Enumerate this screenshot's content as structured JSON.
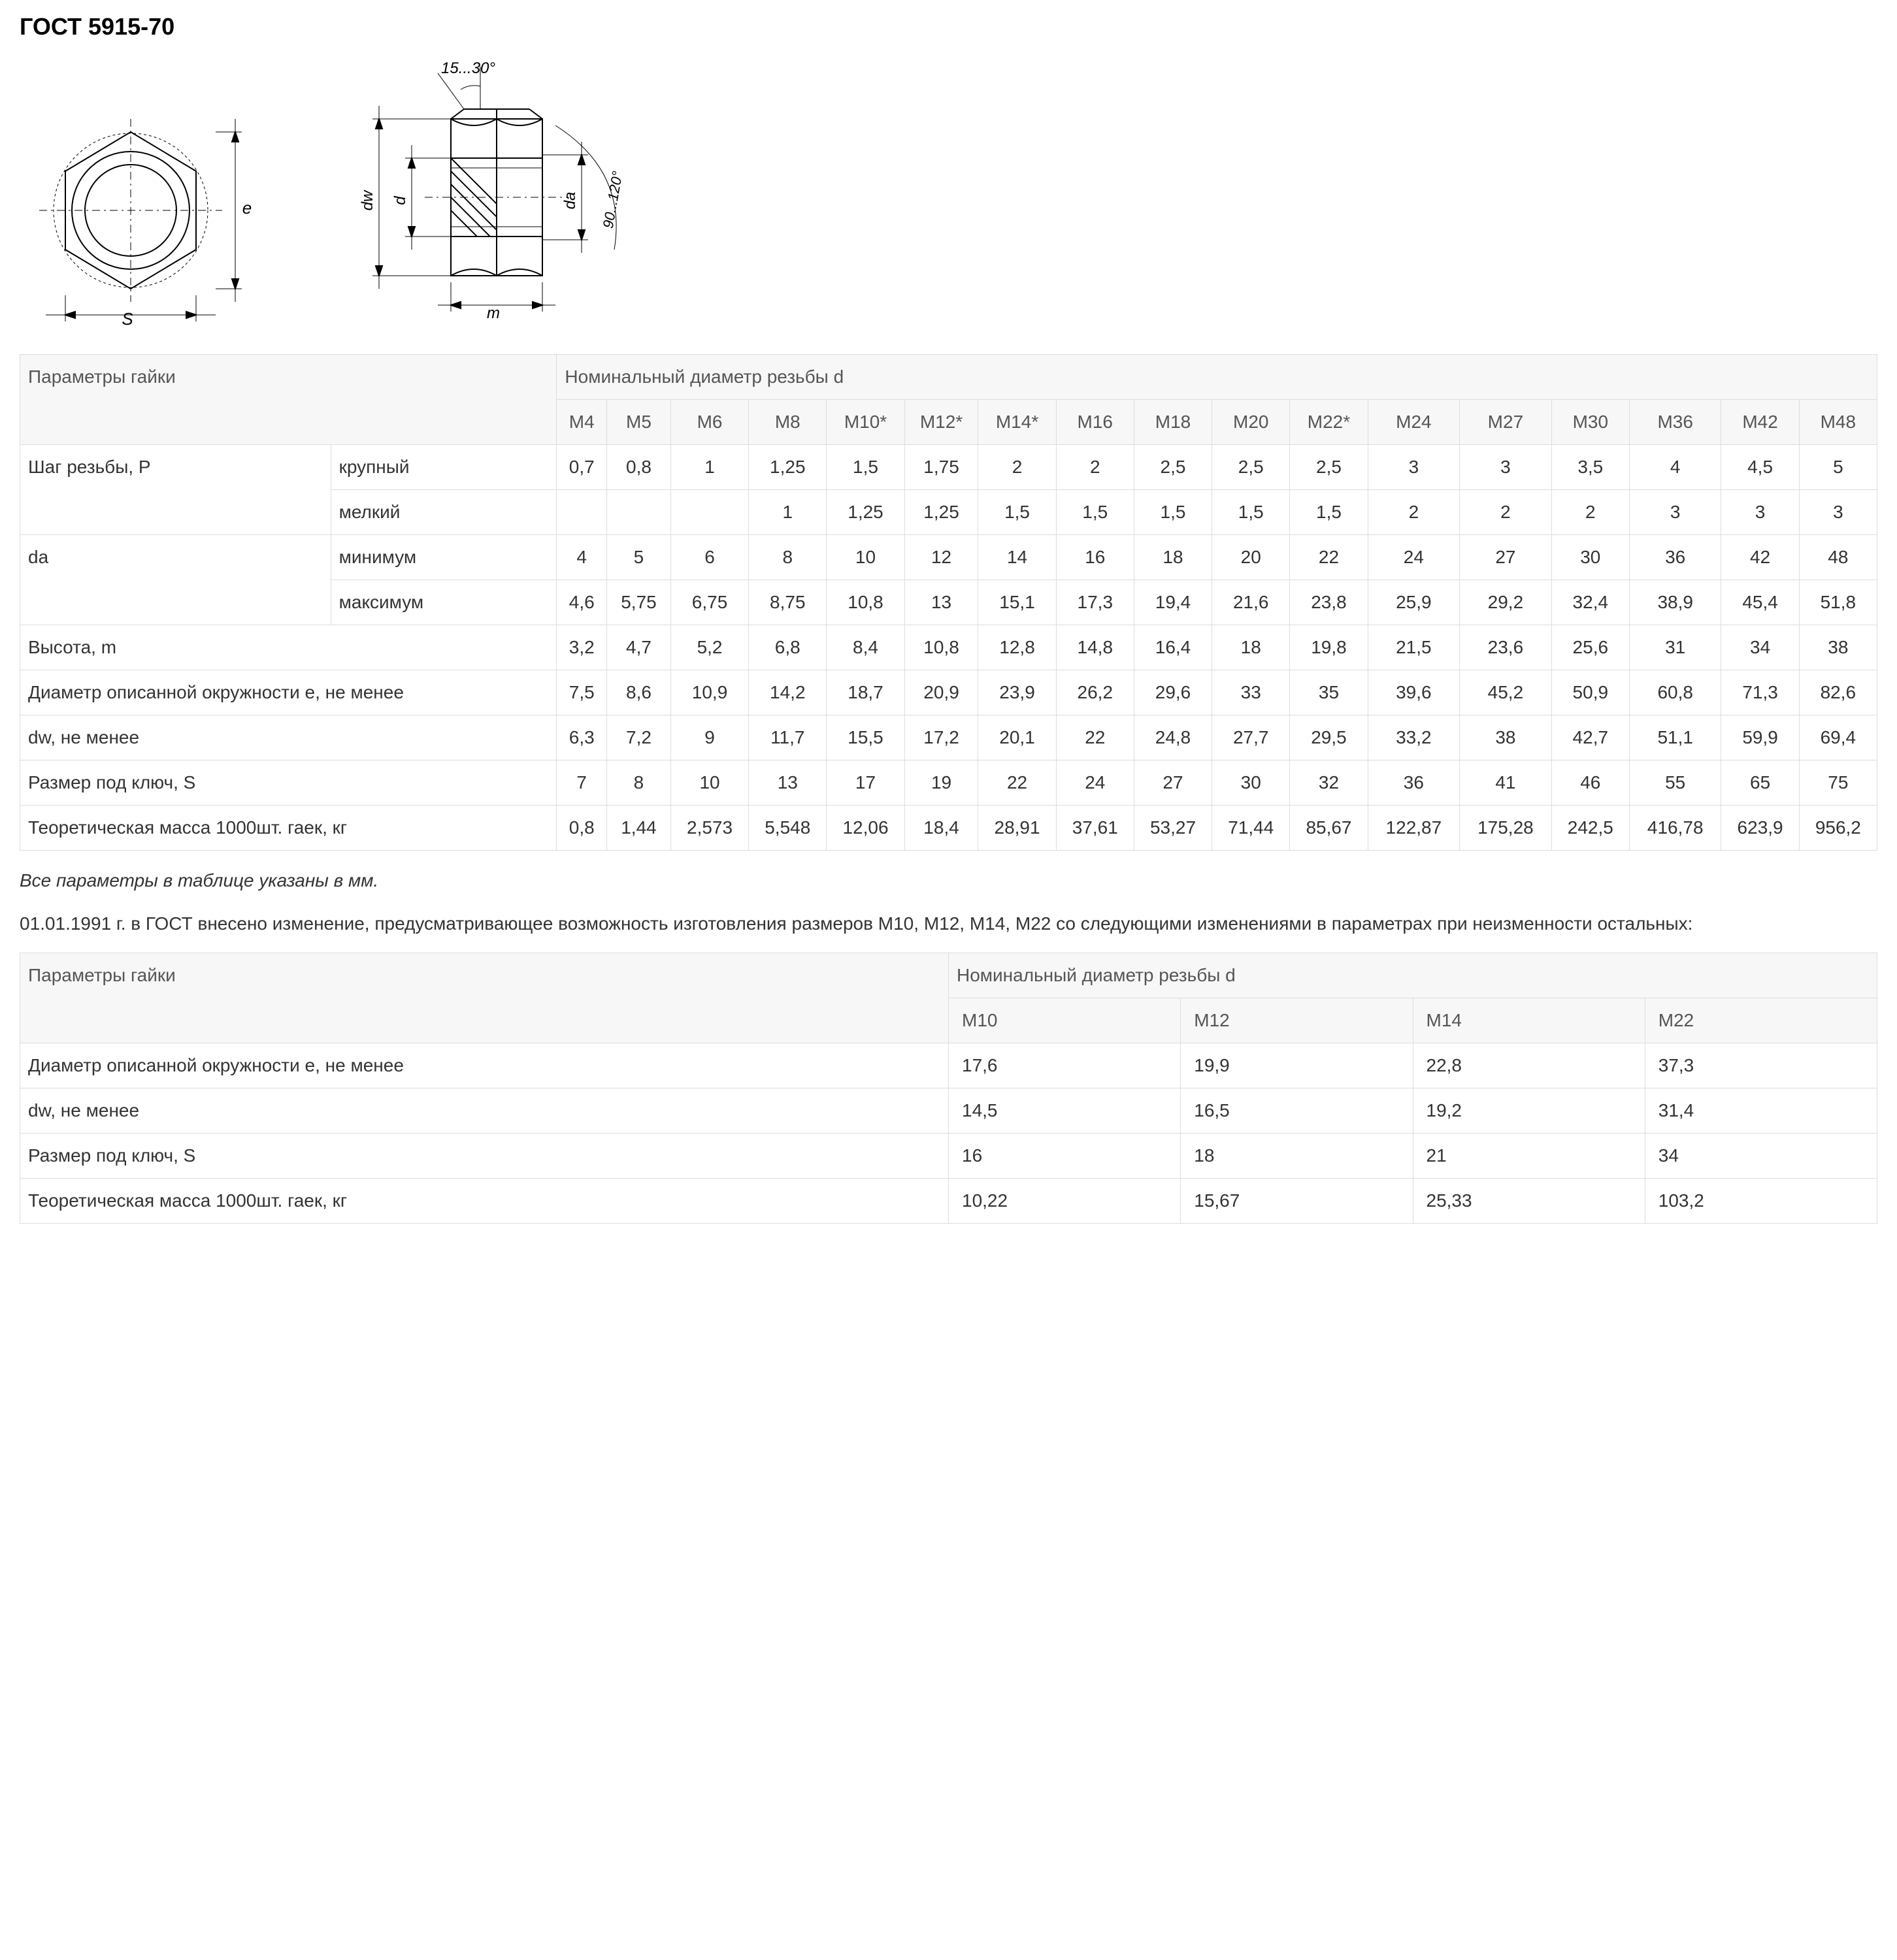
{
  "title": "ГОСТ 5915-70",
  "diagram": {
    "angle_top": "15...30°",
    "angle_side": "90...120°",
    "label_s": "S",
    "label_e": "e",
    "label_dw": "dw",
    "label_d": "d",
    "label_da": "da",
    "label_m": "m"
  },
  "table1": {
    "header_params": "Параметры гайки",
    "header_nominal": "Номинальный диаметр резьбы d",
    "sizes": [
      "M4",
      "M5",
      "M6",
      "M8",
      "M10*",
      "M12*",
      "M14*",
      "M16",
      "M18",
      "M20",
      "M22*",
      "M24",
      "M27",
      "M30",
      "M36",
      "M42",
      "M48"
    ],
    "rows": [
      {
        "label": "Шаг резьбы, P",
        "sub": "крупный",
        "rowspan": 2,
        "vals": [
          "0,7",
          "0,8",
          "1",
          "1,25",
          "1,5",
          "1,75",
          "2",
          "2",
          "2,5",
          "2,5",
          "2,5",
          "3",
          "3",
          "3,5",
          "4",
          "4,5",
          "5"
        ]
      },
      {
        "sub": "мелкий",
        "vals": [
          "",
          "",
          "",
          "1",
          "1,25",
          "1,25",
          "1,5",
          "1,5",
          "1,5",
          "1,5",
          "1,5",
          "2",
          "2",
          "2",
          "3",
          "3",
          "3"
        ]
      },
      {
        "label": "da",
        "sub": "минимум",
        "rowspan": 2,
        "vals": [
          "4",
          "5",
          "6",
          "8",
          "10",
          "12",
          "14",
          "16",
          "18",
          "20",
          "22",
          "24",
          "27",
          "30",
          "36",
          "42",
          "48"
        ]
      },
      {
        "sub": "максимум",
        "vals": [
          "4,6",
          "5,75",
          "6,75",
          "8,75",
          "10,8",
          "13",
          "15,1",
          "17,3",
          "19,4",
          "21,6",
          "23,8",
          "25,9",
          "29,2",
          "32,4",
          "38,9",
          "45,4",
          "51,8"
        ]
      },
      {
        "label": "Высота, m",
        "colspan": 2,
        "vals": [
          "3,2",
          "4,7",
          "5,2",
          "6,8",
          "8,4",
          "10,8",
          "12,8",
          "14,8",
          "16,4",
          "18",
          "19,8",
          "21,5",
          "23,6",
          "25,6",
          "31",
          "34",
          "38"
        ]
      },
      {
        "label": "Диаметр описанной окружности e, не менее",
        "colspan": 2,
        "vals": [
          "7,5",
          "8,6",
          "10,9",
          "14,2",
          "18,7",
          "20,9",
          "23,9",
          "26,2",
          "29,6",
          "33",
          "35",
          "39,6",
          "45,2",
          "50,9",
          "60,8",
          "71,3",
          "82,6"
        ]
      },
      {
        "label": "dw, не менее",
        "colspan": 2,
        "vals": [
          "6,3",
          "7,2",
          "9",
          "11,7",
          "15,5",
          "17,2",
          "20,1",
          "22",
          "24,8",
          "27,7",
          "29,5",
          "33,2",
          "38",
          "42,7",
          "51,1",
          "59,9",
          "69,4"
        ]
      },
      {
        "label": "Размер под ключ, S",
        "colspan": 2,
        "vals": [
          "7",
          "8",
          "10",
          "13",
          "17",
          "19",
          "22",
          "24",
          "27",
          "30",
          "32",
          "36",
          "41",
          "46",
          "55",
          "65",
          "75"
        ]
      },
      {
        "label": "Теоретическая масса 1000шт. гаек, кг",
        "colspan": 2,
        "vals": [
          "0,8",
          "1,44",
          "2,573",
          "5,548",
          "12,06",
          "18,4",
          "28,91",
          "37,61",
          "53,27",
          "71,44",
          "85,67",
          "122,87",
          "175,28",
          "242,5",
          "416,78",
          "623,9",
          "956,2"
        ]
      }
    ]
  },
  "note_mm": "Все параметры в таблице указаны в мм.",
  "note_change": "01.01.1991 г. в ГОСТ внесено изменение, предусматривающее возможность изготовления размеров М10, М12, М14, М22 со следующими изменениями в параметрах при неизменности остальных:",
  "table2": {
    "header_params": "Параметры гайки",
    "header_nominal": "Номинальный диаметр резьбы d",
    "sizes": [
      "M10",
      "M12",
      "M14",
      "M22"
    ],
    "rows": [
      {
        "label": "Диаметр описанной окружности e, не менее",
        "vals": [
          "17,6",
          "19,9",
          "22,8",
          "37,3"
        ]
      },
      {
        "label": "dw, не менее",
        "vals": [
          "14,5",
          "16,5",
          "19,2",
          "31,4"
        ]
      },
      {
        "label": "Размер под ключ, S",
        "vals": [
          "16",
          "18",
          "21",
          "34"
        ]
      },
      {
        "label": "Теоретическая масса 1000шт. гаек, кг",
        "vals": [
          "10,22",
          "15,67",
          "25,33",
          "103,2"
        ]
      }
    ]
  }
}
